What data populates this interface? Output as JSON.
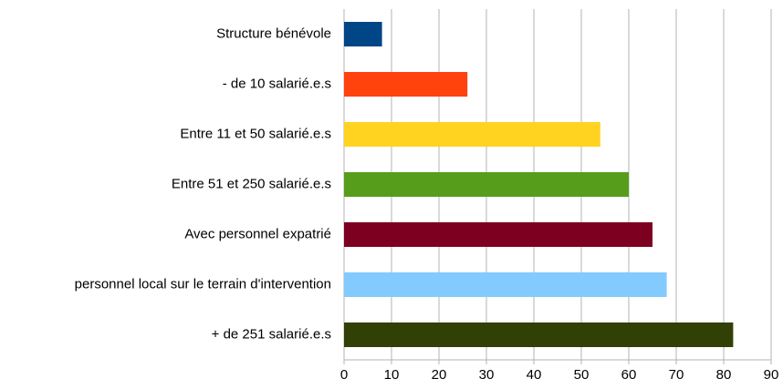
{
  "chart_data": {
    "type": "barh",
    "categories": [
      "Structure  bénévole",
      "- de 10 salarié.e.s",
      "Entre 11 et 50 salarié.e.s",
      "Entre 51 et 250 salarié.e.s",
      "Avec personnel expatrié",
      "personnel local sur le terrain d'intervention",
      "+ de 251 salarié.e.s"
    ],
    "values": [
      8,
      26,
      54,
      60,
      65,
      68,
      82
    ],
    "colors": [
      "#004586",
      "#ff420e",
      "#ffd320",
      "#579d1c",
      "#7e0021",
      "#83caff",
      "#314004"
    ],
    "xlim": [
      0,
      90
    ],
    "xticks": [
      0,
      10,
      20,
      30,
      40,
      50,
      60,
      70,
      80,
      90
    ],
    "grid": true
  }
}
